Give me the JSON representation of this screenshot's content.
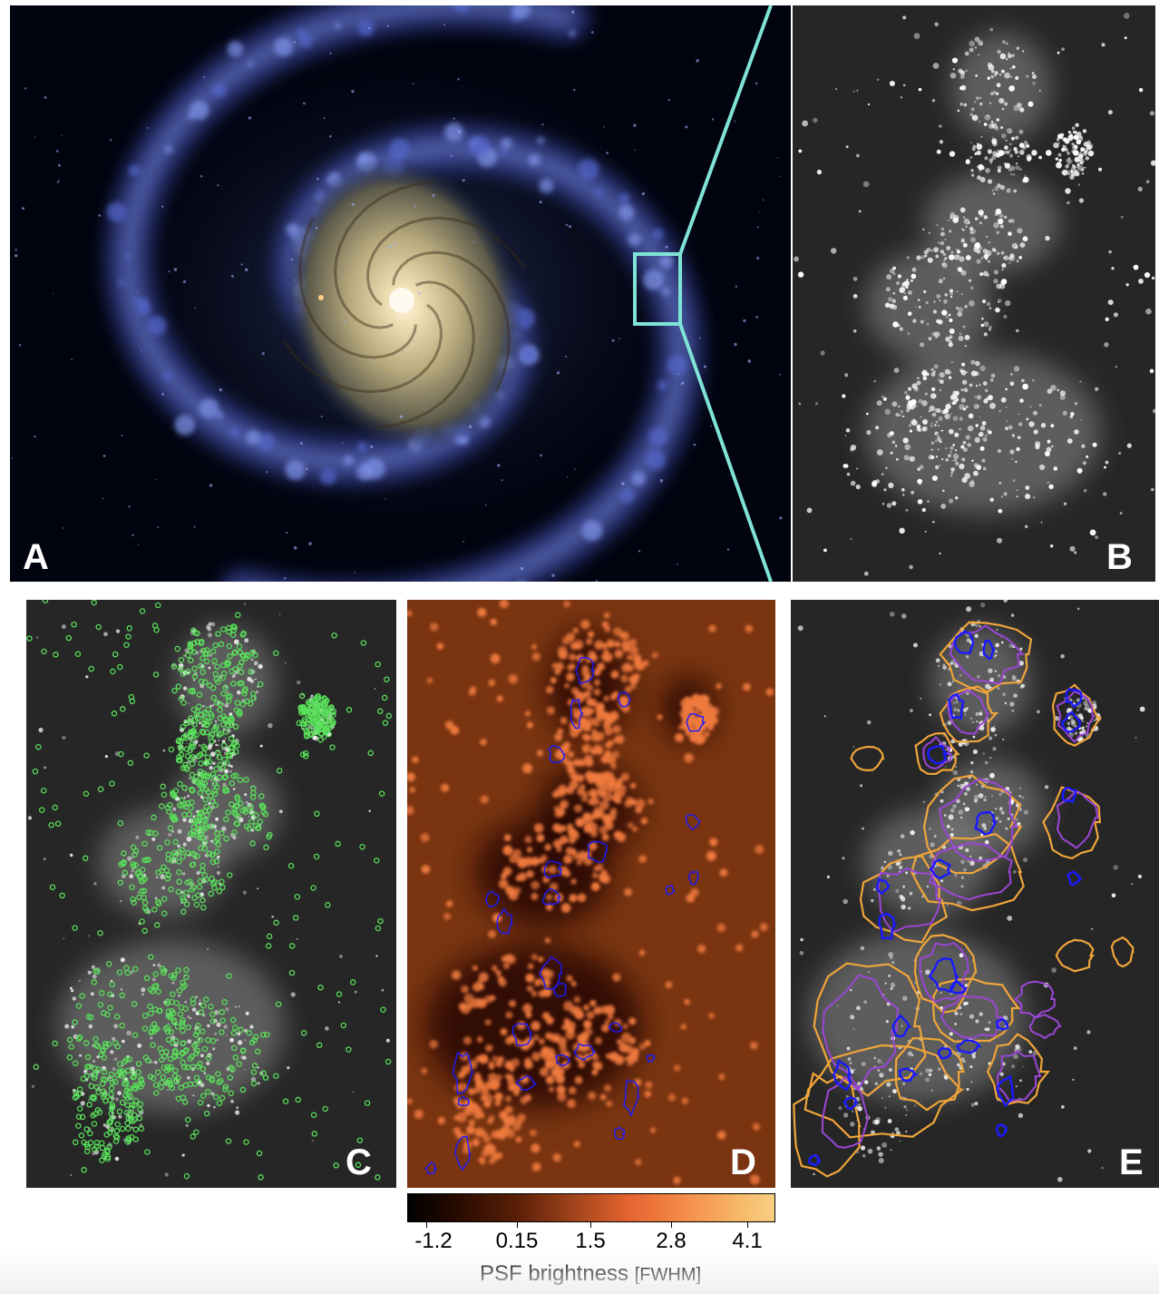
{
  "panels": {
    "a": {
      "label": "A"
    },
    "b": {
      "label": "B"
    },
    "c": {
      "label": "C"
    },
    "d": {
      "label": "D"
    },
    "e": {
      "label": "E"
    }
  },
  "colors": {
    "zoom_box": "#7fe3d6",
    "source_markers": "#59e05a",
    "contour_inner": "#1a1aff",
    "contour_mid": "#9b46d6",
    "contour_outer": "#f0a53a"
  },
  "colorbar": {
    "ticks": [
      "-1.2",
      "0.15",
      "1.5",
      "2.8",
      "4.1"
    ],
    "label": "PSF brightness",
    "unit": "[FWHM]"
  }
}
